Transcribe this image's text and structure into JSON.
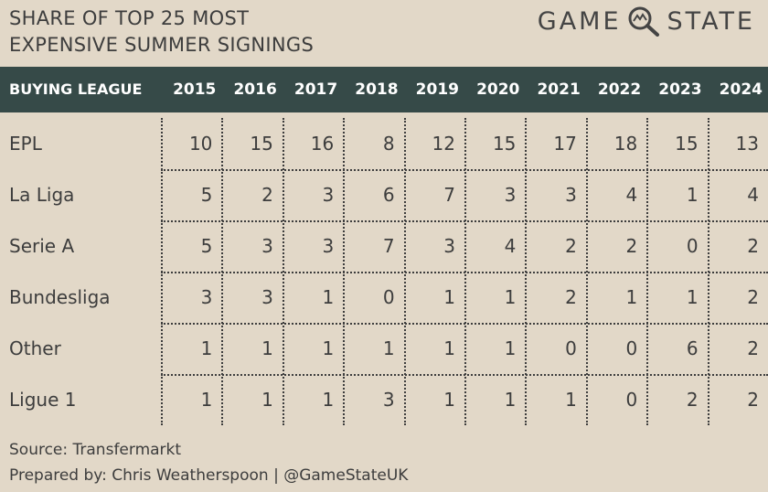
{
  "title": {
    "line1": "SHARE OF TOP 25 MOST",
    "line2": "EXPENSIVE SUMMER SIGNINGS"
  },
  "brand": {
    "left": "GAME",
    "right": "STATE",
    "icon": "magnifier-icon"
  },
  "chart_data": {
    "type": "table",
    "title": "SHARE OF TOP 25 MOST EXPENSIVE SUMMER SIGNINGS",
    "row_header": "BUYING LEAGUE",
    "columns": [
      "2015",
      "2016",
      "2017",
      "2018",
      "2019",
      "2020",
      "2021",
      "2022",
      "2023",
      "2024"
    ],
    "rows": [
      {
        "name": "EPL",
        "values": [
          10,
          15,
          16,
          8,
          12,
          15,
          17,
          18,
          15,
          13
        ]
      },
      {
        "name": "La Liga",
        "values": [
          5,
          2,
          3,
          6,
          7,
          3,
          3,
          4,
          1,
          4
        ]
      },
      {
        "name": "Serie A",
        "values": [
          5,
          3,
          3,
          7,
          3,
          4,
          2,
          2,
          0,
          2
        ]
      },
      {
        "name": "Bundesliga",
        "values": [
          3,
          3,
          1,
          0,
          1,
          1,
          2,
          1,
          1,
          2
        ]
      },
      {
        "name": "Other",
        "values": [
          1,
          1,
          1,
          1,
          1,
          1,
          0,
          0,
          6,
          2
        ]
      },
      {
        "name": "Ligue 1",
        "values": [
          1,
          1,
          1,
          3,
          1,
          1,
          1,
          0,
          2,
          2
        ]
      }
    ]
  },
  "footer": {
    "source": "Source: Transfermarkt",
    "prepared": "Prepared by: Chris Weatherspoon | @GameStateUK"
  },
  "colors": {
    "background": "#e2d8c8",
    "header_bar": "#364a48",
    "text": "#3d3d3d"
  }
}
